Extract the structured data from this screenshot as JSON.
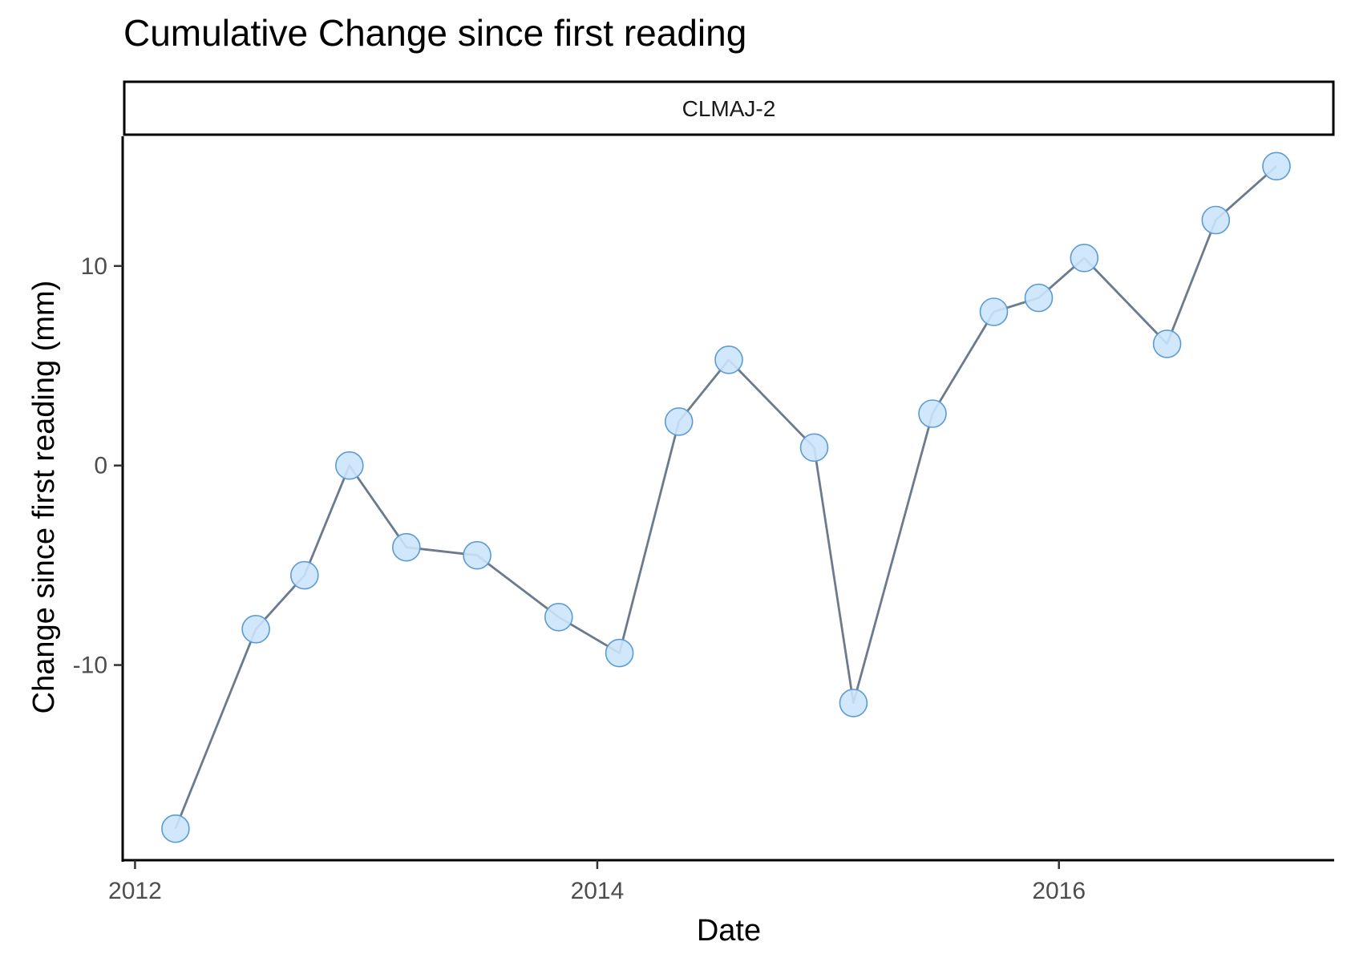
{
  "chart_data": {
    "type": "line",
    "title": "Cumulative Change since first reading",
    "facet": "CLMAJ-2",
    "xlabel": "Date",
    "ylabel": "Change since first reading (mm)",
    "xlim": [
      "2011-12-15",
      "2017-03-10"
    ],
    "ylim": [
      -19.7,
      16.5
    ],
    "x_ticks": [
      "2012-01-01",
      "2014-01-01",
      "2016-01-01"
    ],
    "x_tick_labels": [
      "2012",
      "2014",
      "2016"
    ],
    "y_ticks": [
      -10,
      0,
      10
    ],
    "y_tick_labels": [
      "-10",
      "0",
      "10"
    ],
    "grid": false,
    "series": [
      {
        "x": [
          "2012-03-05",
          "2012-07-10",
          "2012-09-25",
          "2012-12-05",
          "2013-03-05",
          "2013-06-25",
          "2013-11-01",
          "2014-02-05",
          "2014-05-10",
          "2014-07-28",
          "2014-12-10",
          "2015-02-10",
          "2015-06-15",
          "2015-09-20",
          "2015-11-30",
          "2016-02-10",
          "2016-06-20",
          "2016-09-05",
          "2016-12-10"
        ],
        "y": [
          -18.2,
          -8.2,
          -5.5,
          0,
          -4.1,
          -4.5,
          -7.6,
          -9.4,
          2.2,
          5.3,
          0.9,
          -11.9,
          2.6,
          7.7,
          8.4,
          10.4,
          6.1,
          12.3,
          15.0
        ]
      }
    ],
    "colors": {
      "line": "#6b7a8c",
      "point_fill": "#cce4fb",
      "point_stroke": "#5b9bd5"
    }
  }
}
